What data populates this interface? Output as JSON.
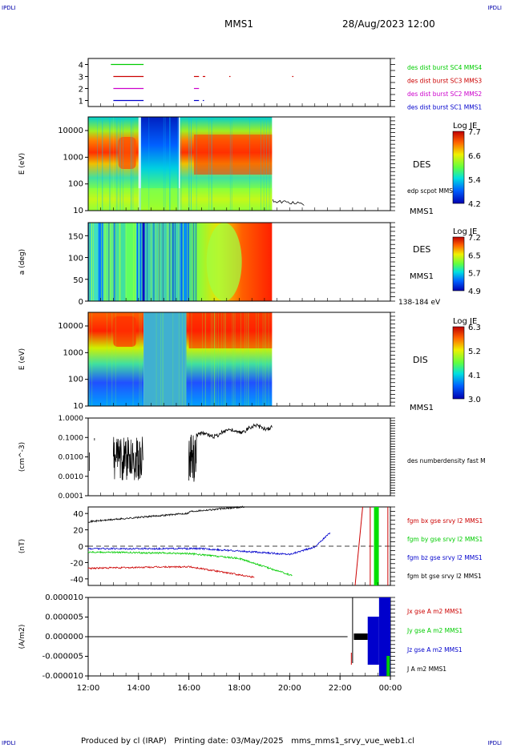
{
  "header": {
    "corner_tl": "IPDLI",
    "corner_tr": "IPDLI",
    "corner_bl": "IPDLI",
    "corner_br": "IPDLI",
    "mission": "MMS1",
    "datetime": "28/Aug/2023 12:00"
  },
  "footer": {
    "text": "Produced by cl (IRAP)   Printing date: 03/May/2025   mms_mms1_srvy_vue_web1.cl"
  },
  "colors": {
    "c1": "#0000cc",
    "c2": "#cc00cc",
    "c3": "#cc0000",
    "c4": "#00cc00",
    "black": "#000000"
  },
  "chart_data": [
    {
      "type": "line",
      "panel": "burst-availability",
      "yticks": [
        "1",
        "2",
        "3",
        "4"
      ],
      "ylim": [
        0.5,
        4.5
      ],
      "series": [
        {
          "name": "des dist burst SC1 MMS1",
          "color": "#0000cc",
          "level": 1,
          "segments": [
            [
              13.0,
              14.2
            ],
            [
              16.2,
              16.4
            ],
            [
              16.55,
              16.6
            ]
          ]
        },
        {
          "name": "des dist burst SC2 MMS2",
          "color": "#cc00cc",
          "level": 2,
          "segments": [
            [
              13.0,
              14.2
            ],
            [
              16.2,
              16.4
            ]
          ]
        },
        {
          "name": "des dist burst SC3 MMS3",
          "color": "#cc0000",
          "level": 3,
          "segments": [
            [
              13.0,
              14.2
            ],
            [
              16.2,
              16.4
            ],
            [
              16.55,
              16.65
            ],
            [
              17.6,
              17.65
            ],
            [
              20.1,
              20.15
            ]
          ]
        },
        {
          "name": "des dist burst SC4 MMS4",
          "color": "#00cc00",
          "level": 4,
          "segments": [
            [
              12.9,
              14.2
            ]
          ]
        }
      ]
    },
    {
      "type": "heatmap",
      "panel": "des-energy",
      "ylabel": "E (eV)",
      "yticks": [
        "10",
        "100",
        "1000",
        "10000"
      ],
      "label": "DES",
      "colorbar_title": "Log JE",
      "colorbar_ticks": [
        "7.7",
        "6.6",
        "5.4",
        "4.2"
      ],
      "overlay": "edp scpot MMS1",
      "overlay_unit": "MMS1"
    },
    {
      "type": "heatmap",
      "panel": "des-pitch",
      "ylabel": "a (deg)",
      "yticks": [
        "0",
        "50",
        "100",
        "150"
      ],
      "label": "DES",
      "sublabel": "MMS1",
      "energy_range": "138-184 eV",
      "colorbar_title": "Log JE",
      "colorbar_ticks": [
        "7.2",
        "6.5",
        "5.7",
        "4.9"
      ]
    },
    {
      "type": "heatmap",
      "panel": "dis-energy",
      "ylabel": "E (eV)",
      "yticks": [
        "10",
        "100",
        "1000",
        "10000"
      ],
      "label": "DIS",
      "sublabel": "MMS1",
      "colorbar_title": "Log JE",
      "colorbar_ticks": [
        "6.3",
        "5.2",
        "4.1",
        "3.0"
      ]
    },
    {
      "type": "line",
      "panel": "density",
      "ylabel": "(cm^-3)",
      "yticks": [
        "0.0001",
        "0.0010",
        "0.0100",
        "0.1000",
        "1.0000"
      ],
      "series_name": "des numberdensity fast M"
    },
    {
      "type": "line",
      "panel": "magnetic-field",
      "ylabel": "(nT)",
      "yticks": [
        "-40",
        "-20",
        "0",
        "20",
        "40"
      ],
      "ylim": [
        -48,
        48
      ],
      "series": [
        {
          "name": "fgm bx gse srvy l2 MMS1",
          "color": "#cc0000"
        },
        {
          "name": "fgm by gse srvy l2 MMS1",
          "color": "#00cc00"
        },
        {
          "name": "fgm bz gse srvy l2 MMS1",
          "color": "#0000cc"
        },
        {
          "name": "fgm bt gse srvy l2 MMS1",
          "color": "#000000"
        }
      ]
    },
    {
      "type": "line",
      "panel": "current-density",
      "ylabel": "(A/m2)",
      "yticks": [
        "-0.000010",
        "-0.000005",
        "0.000000",
        "0.000005",
        "0.000010"
      ],
      "ylim": [
        -1e-05,
        1e-05
      ],
      "series": [
        {
          "name": "Jx gse A m2 MMS1",
          "color": "#cc0000"
        },
        {
          "name": "Jy gse A m2 MMS1",
          "color": "#00cc00"
        },
        {
          "name": "Jz gse A m2 MMS1",
          "color": "#0000cc"
        },
        {
          "name": "J A m2 MMS1",
          "color": "#000000"
        }
      ]
    },
    {
      "type": "axis",
      "panel": "time-axis",
      "xticks": [
        "12:00",
        "14:00",
        "16:00",
        "18:00",
        "20:00",
        "22:00",
        "00:00"
      ]
    }
  ]
}
